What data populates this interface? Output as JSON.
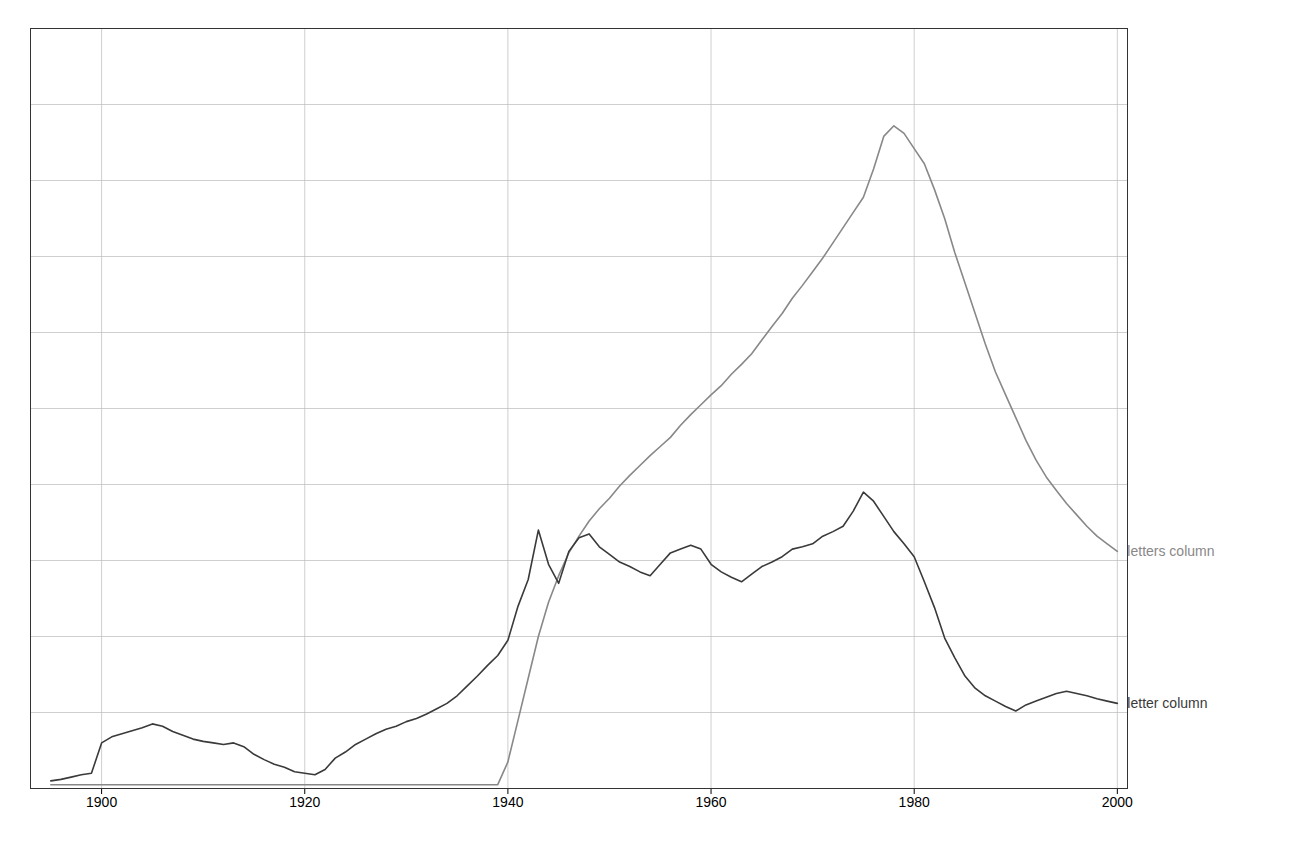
{
  "chart_data": {
    "type": "line",
    "xlim": [
      1893,
      2001
    ],
    "ylim": [
      0,
      1.0
    ],
    "xticks": [
      1900,
      1920,
      1940,
      1960,
      1980,
      2000
    ],
    "yticks": [
      0,
      0.1,
      0.2,
      0.3,
      0.4,
      0.5,
      0.6,
      0.7,
      0.8,
      0.9,
      1.0
    ],
    "grid": true,
    "tick_labels": "x",
    "x": [
      1895,
      1896,
      1897,
      1898,
      1899,
      1900,
      1901,
      1902,
      1903,
      1904,
      1905,
      1906,
      1907,
      1908,
      1909,
      1910,
      1911,
      1912,
      1913,
      1914,
      1915,
      1916,
      1917,
      1918,
      1919,
      1920,
      1921,
      1922,
      1923,
      1924,
      1925,
      1926,
      1927,
      1928,
      1929,
      1930,
      1931,
      1932,
      1933,
      1934,
      1935,
      1936,
      1937,
      1938,
      1939,
      1940,
      1941,
      1942,
      1943,
      1944,
      1945,
      1946,
      1947,
      1948,
      1949,
      1950,
      1951,
      1952,
      1953,
      1954,
      1955,
      1956,
      1957,
      1958,
      1959,
      1960,
      1961,
      1962,
      1963,
      1964,
      1965,
      1966,
      1967,
      1968,
      1969,
      1970,
      1971,
      1972,
      1973,
      1974,
      1975,
      1976,
      1977,
      1978,
      1979,
      1980,
      1981,
      1982,
      1983,
      1984,
      1985,
      1986,
      1987,
      1988,
      1989,
      1990,
      1991,
      1992,
      1993,
      1994,
      1995,
      1996,
      1997,
      1998,
      1999,
      2000
    ],
    "series": [
      {
        "name": "letter column",
        "color": "#3a3a3a",
        "values": [
          0.01,
          0.012,
          0.015,
          0.018,
          0.02,
          0.06,
          0.068,
          0.072,
          0.076,
          0.08,
          0.085,
          0.082,
          0.075,
          0.07,
          0.065,
          0.062,
          0.06,
          0.058,
          0.06,
          0.055,
          0.045,
          0.038,
          0.032,
          0.028,
          0.022,
          0.02,
          0.018,
          0.025,
          0.04,
          0.048,
          0.058,
          0.065,
          0.072,
          0.078,
          0.082,
          0.088,
          0.092,
          0.098,
          0.105,
          0.112,
          0.122,
          0.135,
          0.148,
          0.162,
          0.175,
          0.195,
          0.24,
          0.275,
          0.34,
          0.295,
          0.27,
          0.312,
          0.33,
          0.335,
          0.318,
          0.308,
          0.298,
          0.292,
          0.285,
          0.28,
          0.295,
          0.31,
          0.315,
          0.32,
          0.315,
          0.295,
          0.285,
          0.278,
          0.272,
          0.282,
          0.292,
          0.298,
          0.305,
          0.315,
          0.318,
          0.322,
          0.332,
          0.338,
          0.345,
          0.365,
          0.39,
          0.378,
          0.358,
          0.338,
          0.322,
          0.305,
          0.272,
          0.238,
          0.198,
          0.172,
          0.148,
          0.132,
          0.122,
          0.115,
          0.108,
          0.102,
          0.11,
          0.115,
          0.12,
          0.125,
          0.128,
          0.125,
          0.122,
          0.118,
          0.115,
          0.112
        ]
      },
      {
        "name": "letters column",
        "color": "#888888",
        "values": [
          0.005,
          0.005,
          0.005,
          0.005,
          0.005,
          0.005,
          0.005,
          0.005,
          0.005,
          0.005,
          0.005,
          0.005,
          0.005,
          0.005,
          0.005,
          0.005,
          0.005,
          0.005,
          0.005,
          0.005,
          0.005,
          0.005,
          0.005,
          0.005,
          0.005,
          0.005,
          0.005,
          0.005,
          0.005,
          0.005,
          0.005,
          0.005,
          0.005,
          0.005,
          0.005,
          0.005,
          0.005,
          0.005,
          0.005,
          0.005,
          0.005,
          0.005,
          0.005,
          0.005,
          0.005,
          0.035,
          0.09,
          0.145,
          0.2,
          0.245,
          0.28,
          0.31,
          0.332,
          0.352,
          0.368,
          0.382,
          0.398,
          0.412,
          0.425,
          0.438,
          0.45,
          0.462,
          0.478,
          0.492,
          0.505,
          0.518,
          0.53,
          0.545,
          0.558,
          0.572,
          0.59,
          0.608,
          0.625,
          0.645,
          0.662,
          0.68,
          0.698,
          0.718,
          0.738,
          0.758,
          0.778,
          0.815,
          0.858,
          0.872,
          0.862,
          0.842,
          0.822,
          0.788,
          0.75,
          0.705,
          0.665,
          0.625,
          0.585,
          0.548,
          0.518,
          0.488,
          0.458,
          0.432,
          0.41,
          0.392,
          0.375,
          0.36,
          0.345,
          0.332,
          0.322,
          0.312
        ]
      }
    ]
  }
}
